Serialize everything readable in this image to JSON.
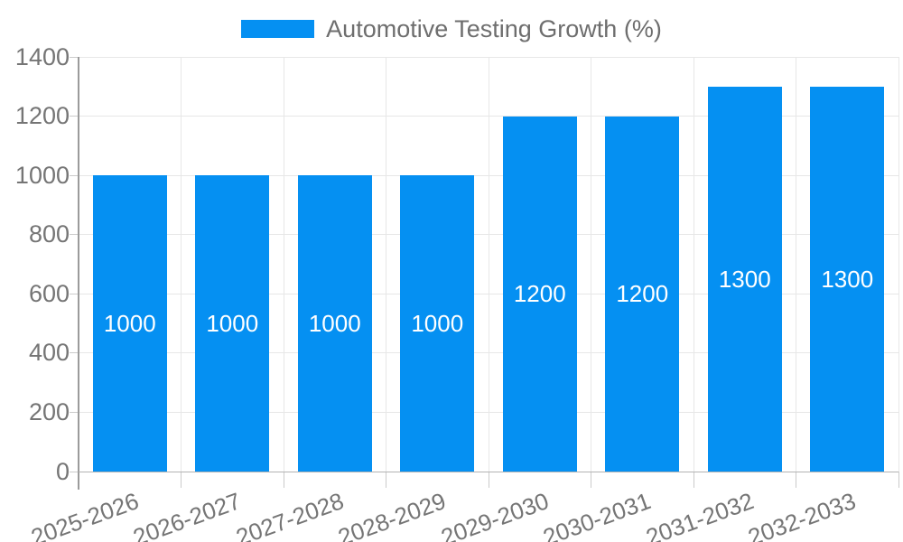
{
  "legend": {
    "label": "Automotive Testing Growth (%)"
  },
  "chart_data": {
    "type": "bar",
    "title": "",
    "xlabel": "",
    "ylabel": "",
    "categories": [
      "2025-2026",
      "2026-2027",
      "2027-2028",
      "2028-2029",
      "2029-2030",
      "2030-2031",
      "2031-2032",
      "2032-2033"
    ],
    "values": [
      1000,
      1000,
      1000,
      1000,
      1200,
      1200,
      1300,
      1300
    ],
    "series_name": "Automotive Testing Growth (%)",
    "data_labels": [
      "1000",
      "1000",
      "1000",
      "1000",
      "1200",
      "1200",
      "1300",
      "1300"
    ],
    "ylim": [
      0,
      1400
    ],
    "ytick_step": 200,
    "yticks": [
      "0",
      "200",
      "400",
      "600",
      "800",
      "1000",
      "1200",
      "1400"
    ],
    "grid": true,
    "legend_position": "top-center",
    "x_label_rotation_deg": -20
  },
  "colors": {
    "bar": "#0590F2",
    "gridline": "#E7E7E7",
    "y_axis_line": "#9B9B9B",
    "x_baseline": "#B3B3B3",
    "tick": "#CBCBCB",
    "axis_text": "#757575",
    "legend_text": "#6E6E6E",
    "data_label_text": "#FFFFFF",
    "background": "#FFFFFF"
  }
}
